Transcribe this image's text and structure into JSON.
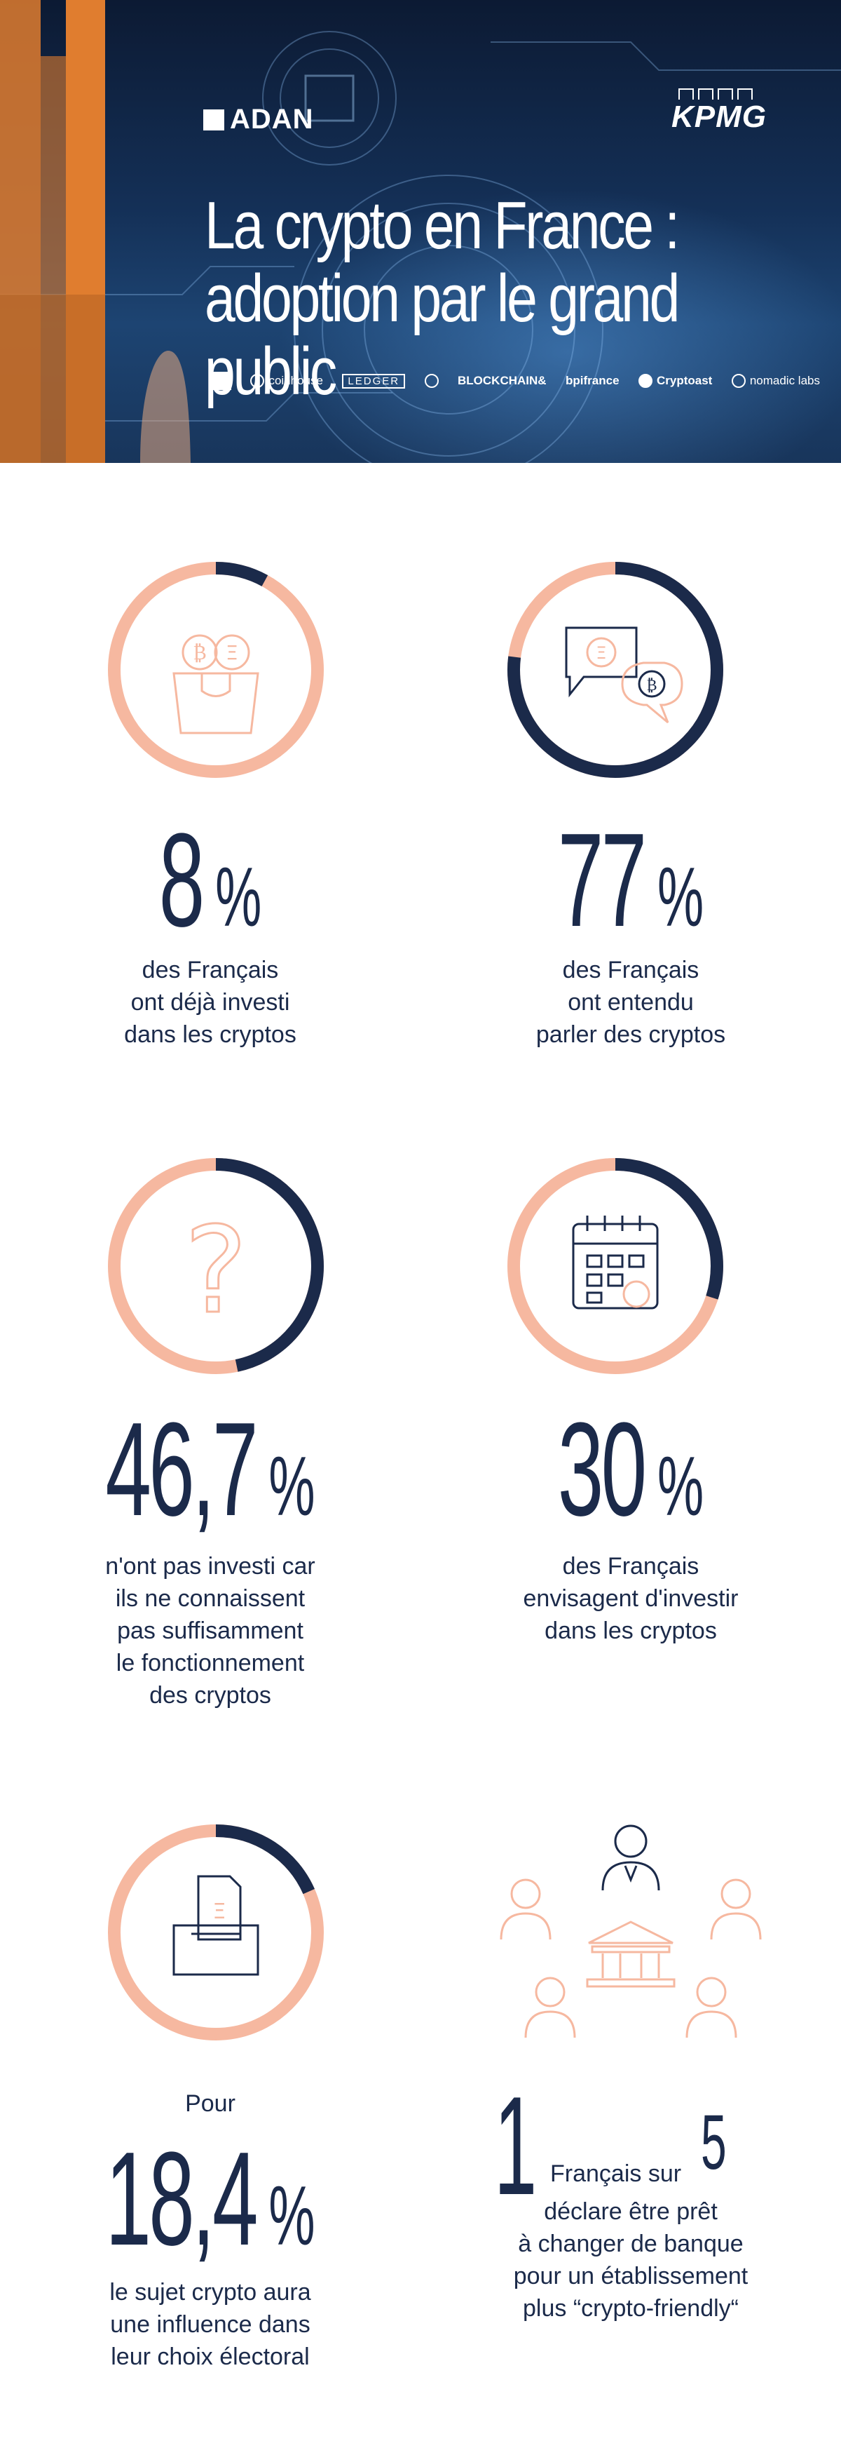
{
  "header": {
    "brand_left": "ADAN",
    "brand_right": "KPMG",
    "title_line1": "La crypto en France :",
    "title_line2": "adoption par le grand public",
    "partners": [
      "coinhouse",
      "LEDGER",
      "BLOCKCHAIN&",
      "bpifrance",
      "Cryptoast",
      "nomadic labs"
    ]
  },
  "stats": [
    {
      "value": "8",
      "unit": "%",
      "description_lines": [
        "des Français",
        "ont déjà investi",
        "dans les cryptos"
      ],
      "fraction": 0.08,
      "icon": "shopping-bag-crypto-icon"
    },
    {
      "value": "77",
      "unit": "%",
      "description_lines": [
        "des Français",
        "ont entendu",
        "parler des cryptos"
      ],
      "fraction": 0.77,
      "icon": "chat-bubbles-crypto-icon"
    },
    {
      "value": "46,7",
      "unit": "%",
      "description_lines": [
        "n'ont pas investi car",
        "ils ne connaissent",
        "pas suffisamment",
        "le fonctionnement",
        "des cryptos"
      ],
      "fraction": 0.467,
      "icon": "question-mark-icon"
    },
    {
      "value": "30",
      "unit": "%",
      "description_lines": [
        "des Français",
        "envisagent d'investir",
        "dans les cryptos"
      ],
      "fraction": 0.3,
      "icon": "calendar-icon"
    },
    {
      "prefix": "Pour",
      "value": "18,4",
      "unit": "%",
      "description_lines": [
        "le sujet crypto aura",
        "une influence dans",
        "leur choix électoral"
      ],
      "fraction": 0.184,
      "icon": "ballot-box-icon"
    }
  ],
  "ratio": {
    "numerator": "1",
    "middle": "Français sur",
    "denominator": "5",
    "description_lines": [
      "déclare être prêt",
      "à changer de banque",
      "pour un établissement",
      "plus “crypto-friendly“"
    ],
    "icon": "people-bank-icon"
  },
  "colors": {
    "navy": "#1b2a4a",
    "salmon": "#f6b8a0",
    "orange": "#e07d2f"
  }
}
